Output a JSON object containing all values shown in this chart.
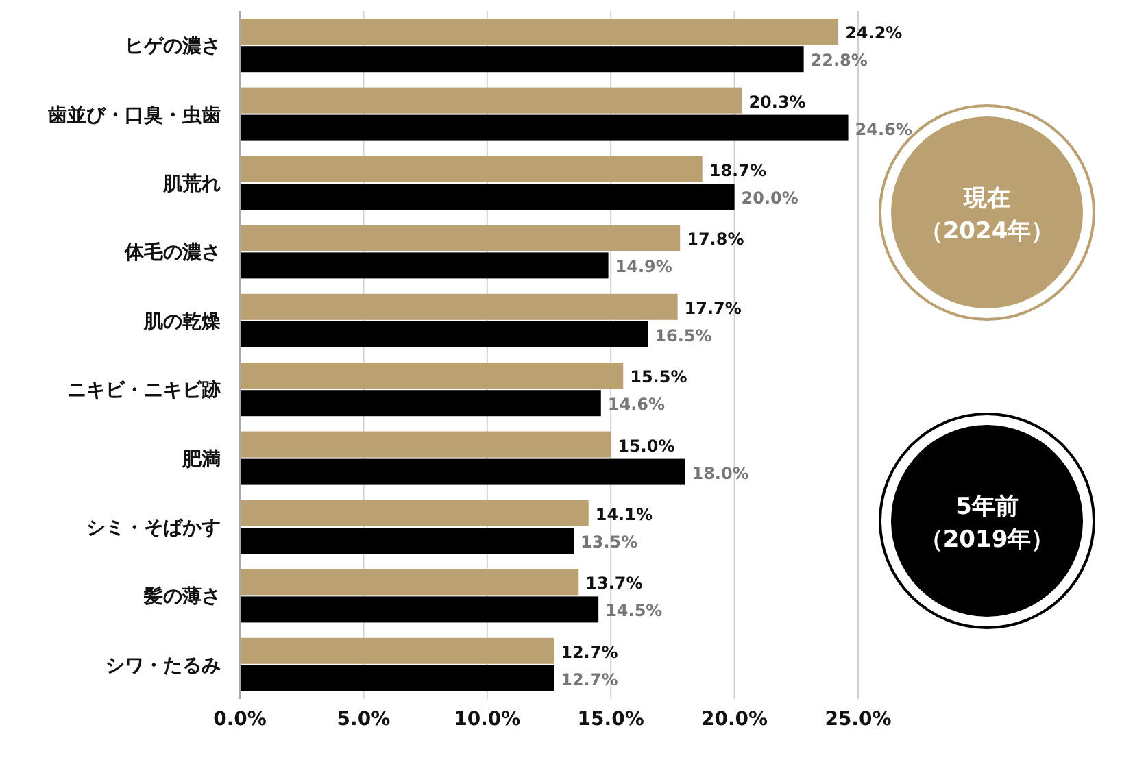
{
  "chart_data": {
    "type": "bar",
    "orientation": "horizontal",
    "categories": [
      "ヒゲの濃さ",
      "歯並び・口臭・虫歯",
      "肌荒れ",
      "体毛の濃さ",
      "肌の乾燥",
      "ニキビ・ニキビ跡",
      "肥満",
      "シミ・そばかす",
      "髪の薄さ",
      "シワ・たるみ"
    ],
    "series": [
      {
        "name": "現在（2024年）",
        "color": "#bba071",
        "values": [
          24.2,
          20.3,
          18.7,
          17.8,
          17.7,
          15.5,
          15.0,
          14.1,
          13.7,
          12.7
        ],
        "value_labels": [
          "24.2%",
          "20.3%",
          "18.7%",
          "17.8%",
          "17.7%",
          "15.5%",
          "15.0%",
          "14.1%",
          "13.7%",
          "12.7%"
        ]
      },
      {
        "name": "5年前（2019年）",
        "color": "#000000",
        "values": [
          22.8,
          24.6,
          20.0,
          14.9,
          16.5,
          14.6,
          18.0,
          13.5,
          14.5,
          12.7
        ],
        "value_labels": [
          "22.8%",
          "24.6%",
          "20.0%",
          "14.9%",
          "16.5%",
          "14.6%",
          "18.0%",
          "13.5%",
          "14.5%",
          "12.7%"
        ]
      }
    ],
    "xlim": [
      0,
      25
    ],
    "xticks": [
      {
        "value": 0,
        "label": "0.0%"
      },
      {
        "value": 5,
        "label": "5.0%"
      },
      {
        "value": 10,
        "label": "10.0%"
      },
      {
        "value": 15,
        "label": "15.0%"
      },
      {
        "value": 20,
        "label": "20.0%"
      },
      {
        "value": 25,
        "label": "25.0%"
      }
    ],
    "grid": "x",
    "legend": "right"
  }
}
